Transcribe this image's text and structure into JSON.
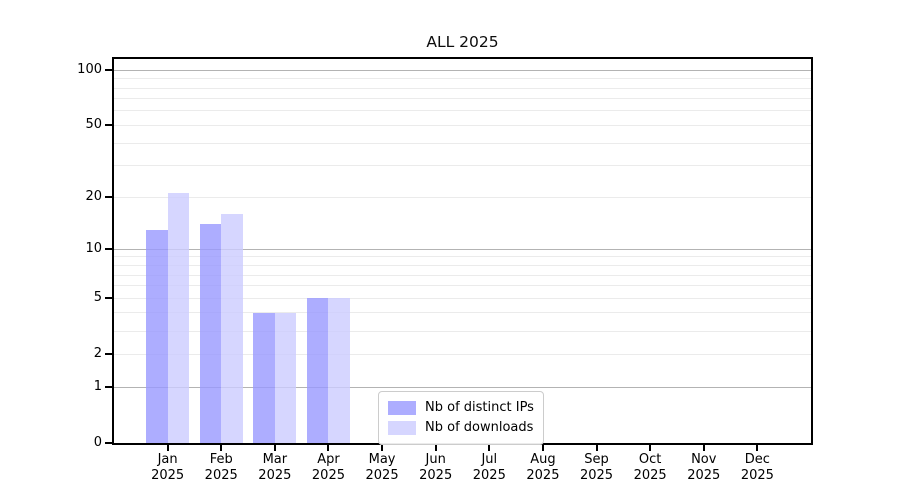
{
  "chart_data": {
    "type": "bar",
    "title": "ALL 2025",
    "y_scale": "log10(1+v)",
    "categories": [
      "Jan",
      "Feb",
      "Mar",
      "Apr",
      "May",
      "Jun",
      "Jul",
      "Aug",
      "Sep",
      "Oct",
      "Nov",
      "Dec"
    ],
    "x_sublabel": "2025",
    "series": [
      {
        "name": "Nb of distinct IPs",
        "color": "#9999ff",
        "alpha": 0.8,
        "values": [
          13,
          14,
          4,
          5,
          0,
          0,
          0,
          0,
          0,
          0,
          0,
          0
        ]
      },
      {
        "name": "Nb of downloads",
        "color": "#ccccff",
        "alpha": 0.8,
        "values": [
          21,
          16,
          4,
          5,
          0,
          0,
          0,
          0,
          0,
          0,
          0,
          0
        ]
      }
    ],
    "y_tick_labels": [
      0,
      1,
      2,
      5,
      10,
      20,
      50,
      100
    ],
    "y_major_gridlines": [
      1,
      10,
      100
    ],
    "y_minor_gridlines": [
      2,
      3,
      4,
      5,
      6,
      7,
      8,
      9,
      20,
      30,
      40,
      50,
      60,
      70,
      80,
      90
    ],
    "ylim": [
      0,
      115
    ],
    "legend_position": "lower center inside plot",
    "grid": true,
    "colors": {
      "major_grid": "#b3b3b3",
      "minor_grid": "#ebebeb",
      "spine": "#000000",
      "background": "#ffffff",
      "text": "#000000"
    }
  }
}
